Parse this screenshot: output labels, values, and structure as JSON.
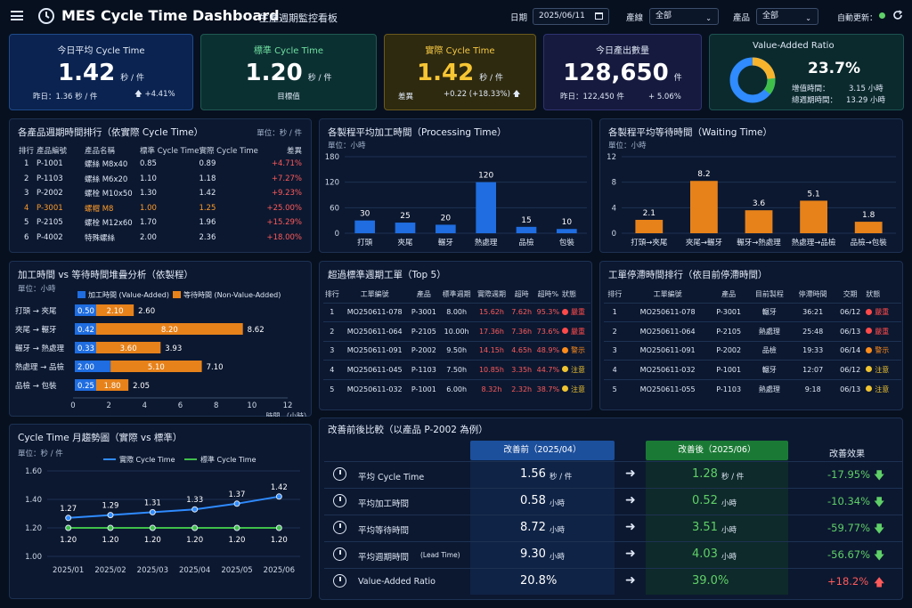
{
  "header": {
    "title": "MES Cycle Time Dashboard",
    "subtitle": "生產週期監控看板",
    "date_label": "日期",
    "date_value": "2025/06/11",
    "line_label": "產線",
    "line_value": "全部",
    "product_label": "產品",
    "product_value": "全部",
    "auto_refresh_label": "自動更新："
  },
  "kpis": [
    {
      "title": "今日平均 Cycle Time",
      "value": "1.42",
      "unit": "秒 / 件",
      "foot_left": "昨日：1.36 秒 / 件",
      "foot_right": "+4.41%"
    },
    {
      "title": "標準 Cycle Time",
      "value": "1.20",
      "unit": "秒 / 件",
      "foot_center": "目標值"
    },
    {
      "title": "實際 Cycle Time",
      "value": "1.42",
      "unit": "秒 / 件",
      "foot_left": "差異",
      "foot_right": "+0.22 (+18.33%)"
    },
    {
      "title": "今日產出數量",
      "value": "128,650",
      "unit": "件",
      "foot_left": "昨日：122,450 件",
      "foot_right": "+ 5.06%"
    },
    {
      "title": "Value-Added Ratio",
      "value": "23.7%",
      "row1_label": "增值時間：",
      "row1_value": "3.15 小時",
      "row2_label": "總週期時間：",
      "row2_value": "13.29 小時",
      "ratio": 0.237
    }
  ],
  "ranking": {
    "title": "各產品週期時間排行（依實際 Cycle Time）",
    "unit": "單位：秒 / 件",
    "headers": [
      "排行",
      "產品編號",
      "產品名稱",
      "標準 Cycle Time",
      "實際 Cycle Time",
      "差異"
    ],
    "rows": [
      [
        "1",
        "P-1001",
        "螺絲 M8x40",
        "0.85",
        "0.89",
        "+4.71%"
      ],
      [
        "2",
        "P-1103",
        "螺絲 M6x20",
        "1.10",
        "1.18",
        "+7.27%"
      ],
      [
        "3",
        "P-2002",
        "螺栓 M10x50",
        "1.30",
        "1.42",
        "+9.23%"
      ],
      [
        "4",
        "P-3001",
        "螺帽 M8",
        "1.00",
        "1.25",
        "+25.00%"
      ],
      [
        "5",
        "P-2105",
        "螺栓 M12x60",
        "1.70",
        "1.96",
        "+15.29%"
      ],
      [
        "6",
        "P-4002",
        "特殊螺絲",
        "2.00",
        "2.36",
        "+18.00%"
      ]
    ]
  },
  "processing": {
    "title": "各製程平均加工時間（Processing Time）",
    "unit": "單位：小時",
    "yticks": [
      "180",
      "120",
      "60",
      "0"
    ],
    "ymax": 180,
    "categories": [
      "打頭",
      "夾尾",
      "輾牙",
      "熱處理",
      "品檢",
      "包裝"
    ],
    "values": [
      30,
      25,
      20,
      120,
      15,
      10
    ]
  },
  "waiting": {
    "title": "各製程平均等待時間（Waiting Time）",
    "unit": "單位：小時",
    "yticks": [
      "12",
      "8",
      "4",
      "0"
    ],
    "ymax": 12,
    "categories": [
      "打頭→夾尾",
      "夾尾→輾牙",
      "輾牙→熱處理",
      "熱處理→品檢",
      "品檢→包裝"
    ],
    "values": [
      2.1,
      8.2,
      3.6,
      5.1,
      1.8
    ]
  },
  "stacked": {
    "title": "加工時間 vs 等待時間堆疊分析（依製程）",
    "unit": "單位：小時",
    "legend_a": "加工時間 (Value-Added)",
    "legend_b": "等待時間 (Non-Value-Added)",
    "xticks": [
      "0",
      "2",
      "4",
      "6",
      "8",
      "10",
      "12"
    ],
    "xmax": 12,
    "xlabel": "時間 （小時）",
    "rows": [
      {
        "label": "打頭 → 夾尾",
        "a": 0.5,
        "b": 2.1,
        "a_label": "0.50",
        "b_label": "2.10",
        "total": "2.60"
      },
      {
        "label": "夾尾 → 輾牙",
        "a": 0.42,
        "b": 8.2,
        "a_label": "0.42",
        "b_label": "8.20",
        "total": "8.62"
      },
      {
        "label": "輾牙 → 熱處理",
        "a": 0.33,
        "b": 3.6,
        "a_label": "0.33",
        "b_label": "3.60",
        "total": "3.93"
      },
      {
        "label": "熱處理 → 品檢",
        "a": 2.0,
        "b": 5.1,
        "a_label": "2.00",
        "b_label": "5.10",
        "total": "7.10"
      },
      {
        "label": "品檢 → 包裝",
        "a": 0.25,
        "b": 1.8,
        "a_label": "0.25",
        "b_label": "1.80",
        "total": "2.05"
      }
    ]
  },
  "overdue": {
    "title": "超過標準週期工單（Top 5）",
    "headers": [
      "排行",
      "工單編號",
      "產品",
      "標準週期",
      "實際週期",
      "超時",
      "超時%",
      "狀態"
    ],
    "rows": [
      [
        "1",
        "MO250611-078",
        "P-3001",
        "8.00h",
        "15.62h",
        "7.62h",
        "95.3%",
        "嚴重"
      ],
      [
        "2",
        "MO250611-064",
        "P-2105",
        "10.00h",
        "17.36h",
        "7.36h",
        "73.6%",
        "嚴重"
      ],
      [
        "3",
        "MO250611-091",
        "P-2002",
        "9.50h",
        "14.15h",
        "4.65h",
        "48.9%",
        "警示"
      ],
      [
        "4",
        "MO250611-045",
        "P-1103",
        "7.50h",
        "10.85h",
        "3.35h",
        "44.7%",
        "注意"
      ],
      [
        "5",
        "MO250611-032",
        "P-1001",
        "6.00h",
        "8.32h",
        "2.32h",
        "38.7%",
        "注意"
      ]
    ]
  },
  "stagnant": {
    "title": "工單停滯時間排行（依目前停滯時間）",
    "headers": [
      "排行",
      "工單編號",
      "產品",
      "目前製程",
      "停滯時間",
      "交期",
      "狀態"
    ],
    "rows": [
      [
        "1",
        "MO250611-078",
        "P-3001",
        "輾牙",
        "36:21",
        "06/12",
        "嚴重"
      ],
      [
        "2",
        "MO250611-064",
        "P-2105",
        "熱處理",
        "25:48",
        "06/13",
        "嚴重"
      ],
      [
        "3",
        "MO250611-091",
        "P-2002",
        "品檢",
        "19:33",
        "06/14",
        "警示"
      ],
      [
        "4",
        "MO250611-032",
        "P-1001",
        "輾牙",
        "12:07",
        "06/12",
        "注意"
      ],
      [
        "5",
        "MO250611-055",
        "P-1103",
        "熱處理",
        "9:18",
        "06/13",
        "注意"
      ]
    ]
  },
  "status_colors": {
    "嚴重": "#ff4a4a",
    "警示": "#ff8c1a",
    "注意": "#f0c430"
  },
  "chart_data": {
    "type": "line",
    "title": "Cycle Time 月趨勢圖（實際 vs 標準）",
    "ylabel": "單位：秒 / 件",
    "categories": [
      "2025/01",
      "2025/02",
      "2025/03",
      "2025/04",
      "2025/05",
      "2025/06"
    ],
    "yticks": [
      "1.60",
      "1.40",
      "1.20",
      "1.00"
    ],
    "ylim": [
      1.0,
      1.6
    ],
    "series": [
      {
        "name": "實際 Cycle Time",
        "color": "#2f8bff",
        "values": [
          1.27,
          1.29,
          1.31,
          1.33,
          1.37,
          1.42
        ],
        "labels": [
          "1.27",
          "1.29",
          "1.31",
          "1.33",
          "1.37",
          "1.42"
        ]
      },
      {
        "name": "標準 Cycle Time",
        "color": "#3fbf4a",
        "values": [
          1.2,
          1.2,
          1.2,
          1.2,
          1.2,
          1.2
        ],
        "labels": [
          "1.20",
          "1.20",
          "1.20",
          "1.20",
          "1.20",
          "1.20"
        ]
      }
    ]
  },
  "comparison": {
    "title": "改善前後比較（以產品 P-2002 為例）",
    "before_header": "改善前（2025/04）",
    "after_header": "改善後（2025/06）",
    "effect_header": "改善效果",
    "rows": [
      {
        "icon": "stopwatch-icon",
        "label": "平均 Cycle Time",
        "label_sub": "",
        "before": "1.56",
        "before_unit": "秒 / 件",
        "after": "1.28",
        "after_unit": "秒 / 件",
        "effect": "-17.95%"
      },
      {
        "icon": "clock-icon",
        "label": "平均加工時間",
        "label_sub": "",
        "before": "0.58",
        "before_unit": "小時",
        "after": "0.52",
        "after_unit": "小時",
        "effect": "-10.34%"
      },
      {
        "icon": "timer-icon",
        "label": "平均等待時間",
        "label_sub": "",
        "before": "8.72",
        "before_unit": "小時",
        "after": "3.51",
        "after_unit": "小時",
        "effect": "-59.77%"
      },
      {
        "icon": "clock-icon",
        "label": "平均週期時間",
        "label_sub": "(Lead Time)",
        "before": "9.30",
        "before_unit": "小時",
        "after": "4.03",
        "after_unit": "小時",
        "effect": "-56.67%"
      },
      {
        "icon": "gauge-icon",
        "label": "Value-Added Ratio",
        "label_sub": "",
        "before": "20.8%",
        "before_unit": "",
        "after": "39.0%",
        "after_unit": "",
        "effect": "+18.2%"
      }
    ]
  }
}
